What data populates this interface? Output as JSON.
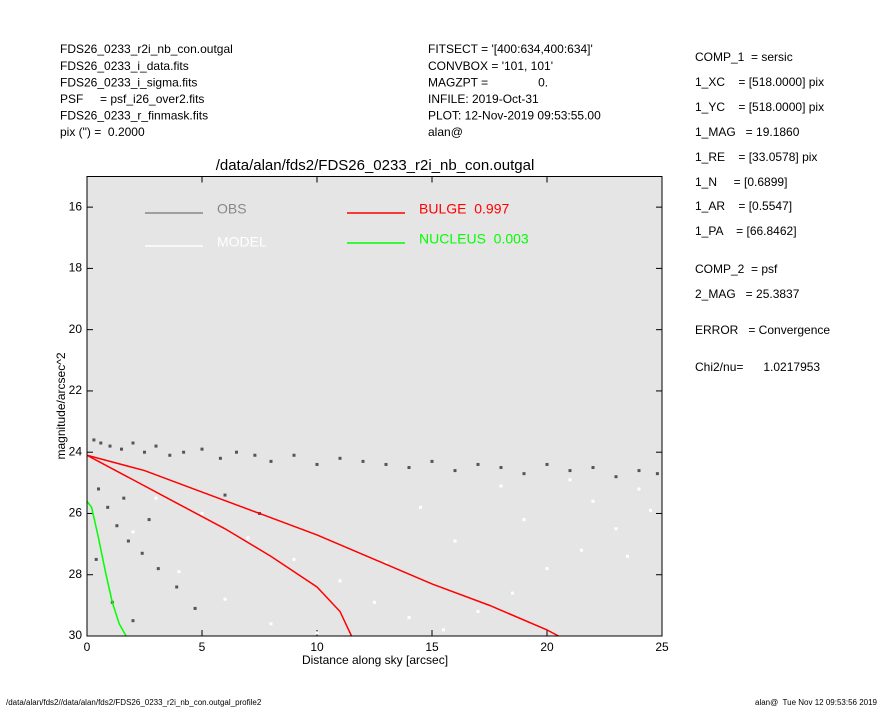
{
  "header": {
    "left": [
      "FDS26_0233_r2i_nb_con.outgal",
      "FDS26_0233_i_data.fits",
      "FDS26_0233_i_sigma.fits",
      "PSF     = psf_i26_over2.fits",
      "FDS26_0233_r_finmask.fits",
      "pix (\") =  0.2000"
    ],
    "middle": [
      "FITSECT = '[400:634,400:634]'",
      "CONVBOX = '101, 101'",
      "MAGZPT =               0.",
      "INFILE: 2019-Oct-31",
      "PLOT: 12-Nov-2019 09:53:55.00",
      "alan@"
    ],
    "right": [
      "COMP_1  = sersic",
      "1_XC    = [518.0000] pix",
      "1_YC    = [518.0000] pix",
      "1_MAG   = 19.1860",
      "1_RE    = [33.0578] pix",
      "1_N     = [0.6899]",
      "1_AR    = [0.5547]",
      "1_PA    = [66.8462]",
      "COMP_2  = psf",
      "2_MAG   = 25.3837",
      "ERROR   = Convergence",
      "Chi2/nu=      1.0217953"
    ]
  },
  "footer": {
    "left": "/data/alan/fds2//data/alan/fds2/FDS26_0233_r2i_nb_con.outgal_profile2",
    "right": "alan@  Tue Nov 12 09:53:56 2019"
  },
  "chart_data": {
    "type": "scatter",
    "title": "/data/alan/fds2/FDS26_0233_r2i_nb_con.outgal",
    "x_label": "Distance along sky [arcsec]",
    "y_label": "magnitude/arcsec^2",
    "xlim": [
      0,
      25
    ],
    "ylim": [
      15,
      30
    ],
    "y_inverted": true,
    "xticks": [
      0,
      5,
      10,
      15,
      20,
      25
    ],
    "yticks": [
      16,
      18,
      20,
      22,
      24,
      26,
      28,
      30
    ],
    "background": "#e5e5e5",
    "series": [
      {
        "name": "OBS",
        "color": "#555555",
        "kind": "points",
        "x": [
          0.3,
          0.6,
          1.0,
          1.5,
          2.0,
          2.5,
          3.0,
          3.6,
          4.2,
          5.0,
          5.8,
          6.5,
          7.3,
          8.0,
          9.0,
          10.0,
          11.0,
          12.0,
          13.0,
          14.0,
          15.0,
          16.0,
          17.0,
          18.0,
          19.0,
          20.0,
          21.0,
          22.0,
          23.0,
          24.0,
          24.8,
          0.5,
          0.9,
          1.3,
          1.8,
          2.4,
          3.1,
          3.9,
          4.7,
          0.4,
          1.1,
          2.0,
          2.7,
          1.6,
          6.0,
          7.5
        ],
        "values": [
          23.6,
          23.7,
          23.8,
          23.9,
          23.7,
          24.0,
          23.8,
          24.1,
          24.0,
          23.9,
          24.2,
          24.0,
          24.1,
          24.3,
          24.1,
          24.4,
          24.2,
          24.3,
          24.4,
          24.5,
          24.3,
          24.6,
          24.4,
          24.5,
          24.7,
          24.4,
          24.6,
          24.5,
          24.8,
          24.6,
          24.7,
          25.2,
          25.8,
          26.4,
          26.9,
          27.3,
          27.8,
          28.4,
          29.1,
          27.5,
          28.9,
          29.5,
          26.2,
          25.5,
          25.4,
          26.0
        ]
      },
      {
        "name": "MODEL",
        "color": "#ffffff",
        "kind": "points",
        "x": [
          3.0,
          5.0,
          7.0,
          9.0,
          11.0,
          12.5,
          14.0,
          15.5,
          17.0,
          18.5,
          20.0,
          21.5,
          23.0,
          24.5,
          8.0,
          10.0,
          13.0,
          16.0,
          19.0,
          22.0,
          24.0,
          6.0,
          4.0,
          2.0,
          14.5,
          18.0,
          21.0,
          23.5
        ],
        "values": [
          25.5,
          26.0,
          26.8,
          27.5,
          28.2,
          28.9,
          29.4,
          29.8,
          29.2,
          28.6,
          27.8,
          27.2,
          26.5,
          25.9,
          29.6,
          29.9,
          27.6,
          26.9,
          26.2,
          25.6,
          25.2,
          28.8,
          27.9,
          26.6,
          25.8,
          25.1,
          24.9,
          27.4
        ]
      },
      {
        "name": "BULGE  0.997",
        "color": "#ff0000",
        "kind": "line",
        "x": [
          0,
          2.5,
          5,
          7.5,
          10,
          12.5,
          15,
          17.5,
          20,
          20.5,
          null,
          0,
          2,
          4,
          6,
          8,
          10,
          11,
          11.5
        ],
        "values": [
          24.1,
          24.6,
          25.3,
          26.0,
          26.7,
          27.5,
          28.3,
          29.0,
          29.8,
          30,
          null,
          24.1,
          24.9,
          25.7,
          26.5,
          27.4,
          28.4,
          29.2,
          30
        ]
      },
      {
        "name": "NUCLEUS  0.003",
        "color": "#00ff00",
        "kind": "line",
        "x": [
          0,
          0.2,
          0.5,
          0.8,
          1.1,
          1.4,
          1.7
        ],
        "values": [
          25.6,
          25.8,
          26.8,
          27.9,
          28.9,
          29.6,
          30
        ]
      }
    ]
  }
}
